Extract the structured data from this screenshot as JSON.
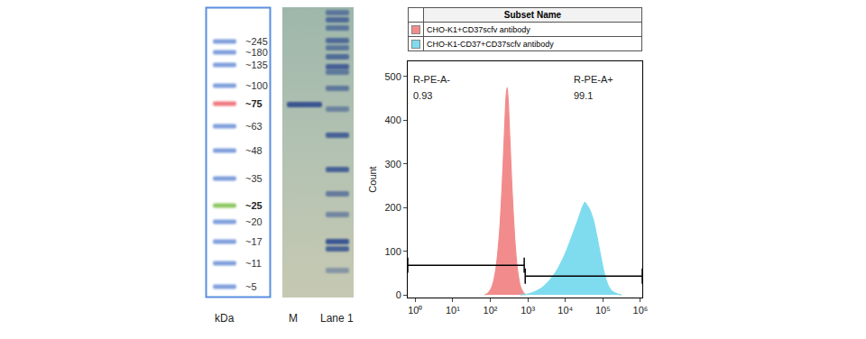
{
  "ladder": {
    "unit": "kDa",
    "color": "#7f9fdc",
    "bands": [
      {
        "label": "~245"
      },
      {
        "label": "~180"
      },
      {
        "label": "~135"
      },
      {
        "label": "~100"
      },
      {
        "label": "~75",
        "color": "#f07880"
      },
      {
        "label": "~63"
      },
      {
        "label": "~48"
      },
      {
        "label": "~35"
      },
      {
        "label": "~25",
        "color": "#8dc860"
      },
      {
        "label": "~20"
      },
      {
        "label": "~17"
      },
      {
        "label": "~11"
      },
      {
        "label": "~5"
      }
    ]
  },
  "gel": {
    "lanes": [
      "M",
      "Lane 1"
    ]
  },
  "chart_data": {
    "type": "area",
    "legend_title": "Subset Name",
    "legend": "top",
    "ylabel": "Count",
    "log": "x",
    "xlim": [
      0.63,
      1120000
    ],
    "xticks": [
      {
        "value": 1,
        "label": "10⁰"
      },
      {
        "value": 10,
        "label": "10¹"
      },
      {
        "value": 100,
        "label": "10²"
      },
      {
        "value": 1000,
        "label": "10³"
      },
      {
        "value": 10000,
        "label": "10⁴"
      },
      {
        "value": 100000,
        "label": "10⁵"
      },
      {
        "value": 1000000,
        "label": "10⁶"
      }
    ],
    "ylim": [
      -6,
      535
    ],
    "yticks": [
      0,
      100,
      200,
      300,
      400,
      500
    ],
    "series": [
      {
        "name": "CHO-K1+CD37scfv antibody",
        "color": "#f28c8c",
        "x": [
          70.8,
          89.1,
          112,
          141,
          178,
          209,
          240,
          263,
          282,
          302,
          331,
          380,
          447,
          525,
          631,
          759,
          891
        ],
        "values": [
          0,
          5,
          20,
          60,
          150,
          260,
          380,
          455,
          475,
          440,
          360,
          240,
          130,
          60,
          20,
          5,
          0
        ]
      },
      {
        "name": "CHO-K1-CD37+CD37scfv antibody",
        "color": "#7fdcef",
        "x": [
          631,
          1000,
          1585,
          2512,
          3981,
          6310,
          10000,
          15849,
          22387,
          28184,
          33113,
          38019,
          44668,
          56234,
          70795,
          89125,
          112202,
          141254,
          177828,
          251189,
          316228
        ],
        "values": [
          0,
          2,
          8,
          18,
          35,
          60,
          95,
          140,
          175,
          200,
          212,
          205,
          195,
          170,
          130,
          85,
          45,
          20,
          8,
          2,
          0
        ]
      }
    ],
    "gates": [
      {
        "label": "R-PE-A-",
        "value": 0.93,
        "x": [
          0.63,
          800
        ],
        "y": 68
      },
      {
        "label": "R-PE-A+",
        "value": 99.1,
        "x": [
          850,
          1120000
        ],
        "y": 43
      }
    ]
  }
}
